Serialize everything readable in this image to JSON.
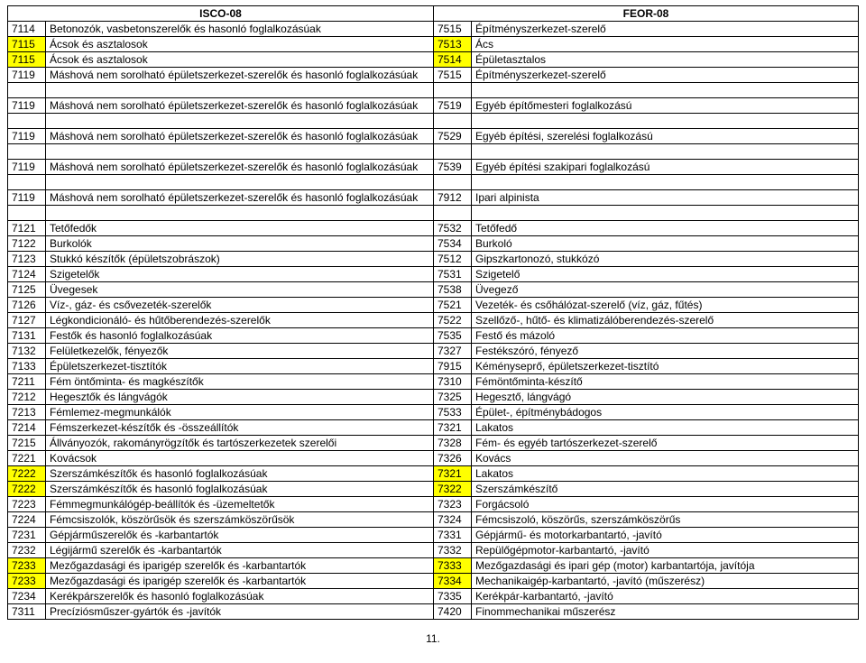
{
  "headers": {
    "left": "ISCO-08",
    "right": "FEOR-08"
  },
  "rows": [
    {
      "c1": "7114",
      "d1": "Betonozók, vasbetonszerelők és hasonló foglalkozásúak",
      "c2": "7515",
      "d2": "Építményszerkezet-szerelő",
      "hl": false
    },
    {
      "c1": "7115",
      "d1": "Ácsok és asztalosok",
      "c2": "7513",
      "d2": "Ács",
      "hl": true
    },
    {
      "c1": "7115",
      "d1": "Ácsok és asztalosok",
      "c2": "7514",
      "d2": "Épületasztalos",
      "hl": true
    },
    {
      "c1": "7119",
      "d1": "Máshová nem sorolható épületszerkezet-szerelők és hasonló foglalkozásúak",
      "c2": "7515",
      "d2": "Építményszerkezet-szerelő",
      "hl": false
    },
    {
      "spacer": true
    },
    {
      "c1": "7119",
      "d1": "Máshová nem sorolható épületszerkezet-szerelők és hasonló foglalkozásúak",
      "c2": "7519",
      "d2": "Egyéb építőmesteri foglalkozású",
      "hl": false
    },
    {
      "spacer": true
    },
    {
      "c1": "7119",
      "d1": "Máshová nem sorolható épületszerkezet-szerelők és hasonló foglalkozásúak",
      "c2": "7529",
      "d2": "Egyéb építési, szerelési foglalkozású",
      "hl": false
    },
    {
      "spacer": true
    },
    {
      "c1": "7119",
      "d1": "Máshová nem sorolható épületszerkezet-szerelők és hasonló foglalkozásúak",
      "c2": "7539",
      "d2": "Egyéb építési szakipari foglalkozású",
      "hl": false
    },
    {
      "spacer": true
    },
    {
      "c1": "7119",
      "d1": "Máshová nem sorolható épületszerkezet-szerelők és hasonló foglalkozásúak",
      "c2": "7912",
      "d2": "Ipari alpinista",
      "hl": false
    },
    {
      "spacer": true
    },
    {
      "c1": "7121",
      "d1": "Tetőfedők",
      "c2": "7532",
      "d2": "Tetőfedő",
      "hl": false
    },
    {
      "c1": "7122",
      "d1": "Burkolók",
      "c2": "7534",
      "d2": "Burkoló",
      "hl": false
    },
    {
      "c1": "7123",
      "d1": "Stukkó készítők (épületszobrászok)",
      "c2": "7512",
      "d2": "Gipszkartonozó, stukkózó",
      "hl": false
    },
    {
      "c1": "7124",
      "d1": "Szigetelők",
      "c2": "7531",
      "d2": "Szigetelő",
      "hl": false
    },
    {
      "c1": "7125",
      "d1": "Üvegesek",
      "c2": "7538",
      "d2": "Üvegező",
      "hl": false
    },
    {
      "c1": "7126",
      "d1": "Víz-, gáz- és csővezeték-szerelők",
      "c2": "7521",
      "d2": "Vezeték- és csőhálózat-szerelő (víz, gáz, fűtés)",
      "hl": false
    },
    {
      "c1": "7127",
      "d1": "Légkondicionáló- és hűtőberendezés-szerelők",
      "c2": "7522",
      "d2": "Szellőző-, hűtő- és klimatizálóberendezés-szerelő",
      "hl": false
    },
    {
      "c1": "7131",
      "d1": "Festők és hasonló foglalkozásúak",
      "c2": "7535",
      "d2": "Festő és mázoló",
      "hl": false
    },
    {
      "c1": "7132",
      "d1": "Felületkezelők, fényezők",
      "c2": "7327",
      "d2": "Festékszóró, fényező",
      "hl": false
    },
    {
      "c1": "7133",
      "d1": "Épületszerkezet-tisztítók",
      "c2": "7915",
      "d2": "Kéményseprő, épületszerkezet-tisztító",
      "hl": false
    },
    {
      "c1": "7211",
      "d1": "Fém öntőminta- és magkészítők",
      "c2": "7310",
      "d2": "Fémöntőminta-készítő",
      "hl": false
    },
    {
      "c1": "7212",
      "d1": "Hegesztők és lángvágók",
      "c2": "7325",
      "d2": "Hegesztő, lángvágó",
      "hl": false
    },
    {
      "c1": "7213",
      "d1": "Fémlemez-megmunkálók",
      "c2": "7533",
      "d2": "Épület-, építménybádogos",
      "hl": false
    },
    {
      "c1": "7214",
      "d1": "Fémszerkezet-készítők és -összeállítók",
      "c2": "7321",
      "d2": "Lakatos",
      "hl": false
    },
    {
      "c1": "7215",
      "d1": "Állványozók, rakományrögzítők és tartószerkezetek szerelői",
      "c2": "7328",
      "d2": "Fém- és egyéb tartószerkezet-szerelő",
      "hl": false
    },
    {
      "c1": "7221",
      "d1": "Kovácsok",
      "c2": "7326",
      "d2": "Kovács",
      "hl": false
    },
    {
      "c1": "7222",
      "d1": "Szerszámkészítők és hasonló foglalkozásúak",
      "c2": "7321",
      "d2": "Lakatos",
      "hl": true
    },
    {
      "c1": "7222",
      "d1": "Szerszámkészítők és hasonló foglalkozásúak",
      "c2": "7322",
      "d2": "Szerszámkészítő",
      "hl": true
    },
    {
      "c1": "7223",
      "d1": "Fémmegmunkálógép-beállítók és -üzemeltetők",
      "c2": "7323",
      "d2": "Forgácsoló",
      "hl": false
    },
    {
      "c1": "7224",
      "d1": "Fémcsiszolók, köszörűsök és szerszámköszörűsök",
      "c2": "7324",
      "d2": "Fémcsiszoló, köszörűs, szerszámköszörűs",
      "hl": false
    },
    {
      "c1": "7231",
      "d1": "Gépjárműszerelők és -karbantartók",
      "c2": "7331",
      "d2": "Gépjármű- és motorkarbantartó, -javító",
      "hl": false
    },
    {
      "c1": "7232",
      "d1": "Légijármű szerelők és -karbantartók",
      "c2": "7332",
      "d2": "Repülőgépmotor-karbantartó, -javító",
      "hl": false
    },
    {
      "c1": "7233",
      "d1": "Mezőgazdasági és iparigép szerelők és -karbantartók",
      "c2": "7333",
      "d2": "Mezőgazdasági és ipari gép (motor) karbantartója, javítója",
      "hl": true
    },
    {
      "c1": "7233",
      "d1": "Mezőgazdasági és iparigép szerelők és -karbantartók",
      "c2": "7334",
      "d2": "Mechanikaigép-karbantartó, -javító (műszerész)",
      "hl": true
    },
    {
      "c1": "7234",
      "d1": "Kerékpárszerelők és hasonló foglalkozásúak",
      "c2": "7335",
      "d2": "Kerékpár-karbantartó, -javító",
      "hl": false
    },
    {
      "c1": "7311",
      "d1": "Precíziósműszer-gyártók és -javítók",
      "c2": "7420",
      "d2": "Finommechanikai műszerész",
      "hl": false
    }
  ],
  "pageNumber": "11."
}
